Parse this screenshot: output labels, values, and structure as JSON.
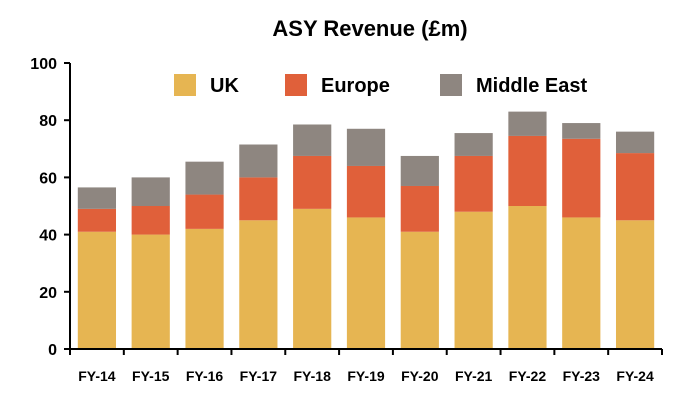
{
  "chart_data": {
    "type": "bar",
    "stacked": true,
    "title": "ASY Revenue (£m)",
    "xlabel": "",
    "ylabel": "",
    "ylim": [
      0,
      100
    ],
    "yticks": [
      0,
      20,
      40,
      60,
      80,
      100
    ],
    "grid": false,
    "legend": "top",
    "categories": [
      "FY-14",
      "FY-15",
      "FY-16",
      "FY-17",
      "FY-18",
      "FY-19",
      "FY-20",
      "FY-21",
      "FY-22",
      "FY-23",
      "FY-24"
    ],
    "series": [
      {
        "name": "UK",
        "color": "#E6B552",
        "values": [
          41,
          40,
          42,
          45,
          49,
          46,
          41,
          48,
          50,
          46,
          45
        ]
      },
      {
        "name": "Europe",
        "color": "#E0603A",
        "values": [
          8,
          10,
          12,
          15,
          18.5,
          18,
          16,
          19.5,
          24.5,
          27.5,
          23.5
        ]
      },
      {
        "name": "Middle East",
        "color": "#8E8680",
        "values": [
          7.5,
          10,
          11.5,
          11.5,
          11,
          13,
          10.5,
          8,
          8.5,
          5.5,
          7.5
        ]
      }
    ]
  }
}
